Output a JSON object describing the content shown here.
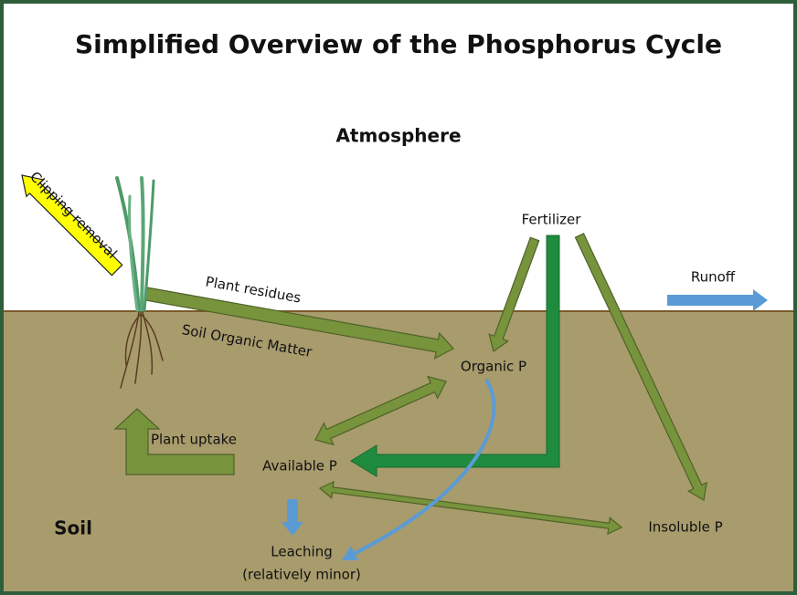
{
  "title": "Simplified Overview of the Phosphorus Cycle",
  "regions": {
    "atmosphere": "Atmosphere",
    "soil": "Soil",
    "soil_organic_matter": "Soil Organic Matter"
  },
  "nodes": [
    {
      "label": "Fertilizer"
    },
    {
      "label": "Organic P"
    },
    {
      "label": "Available P"
    },
    {
      "label": "Insoluble P"
    },
    {
      "label": "Leaching",
      "note": "(relatively minor)"
    }
  ],
  "flows": [
    {
      "label": "Clipping removal"
    },
    {
      "label": "Plant residues"
    },
    {
      "label": "Plant uptake"
    },
    {
      "label": "Runoff"
    }
  ]
}
